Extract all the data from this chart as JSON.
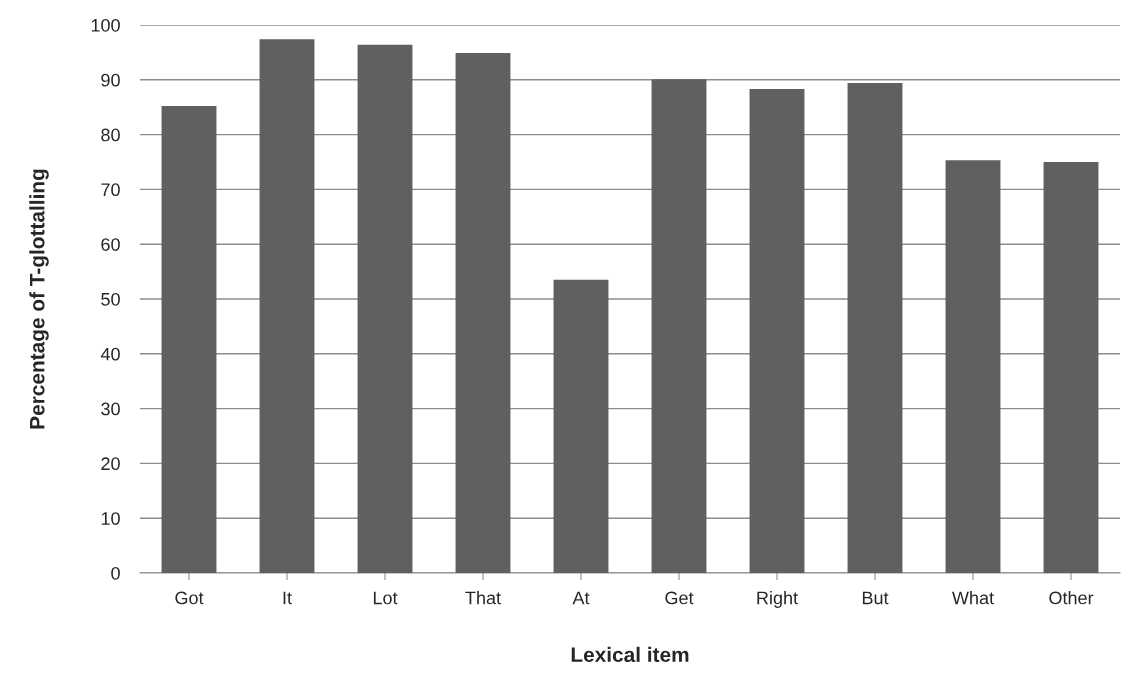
{
  "chart_data": {
    "type": "bar",
    "xlabel": "Lexical item",
    "ylabel": "Percentage of T-glottalling",
    "categories": [
      "Got",
      "It",
      "Lot",
      "That",
      "At",
      "Get",
      "Right",
      "But",
      "What",
      "Other"
    ],
    "values": [
      85.2,
      97.4,
      96.4,
      94.9,
      53.5,
      90.1,
      88.3,
      89.4,
      75.3,
      75.0
    ],
    "color": "#606060",
    "ylim": [
      0,
      100
    ],
    "yticks": [
      0,
      10,
      20,
      30,
      40,
      50,
      60,
      70,
      80,
      90,
      100
    ],
    "grid": "y",
    "legend": false
  }
}
